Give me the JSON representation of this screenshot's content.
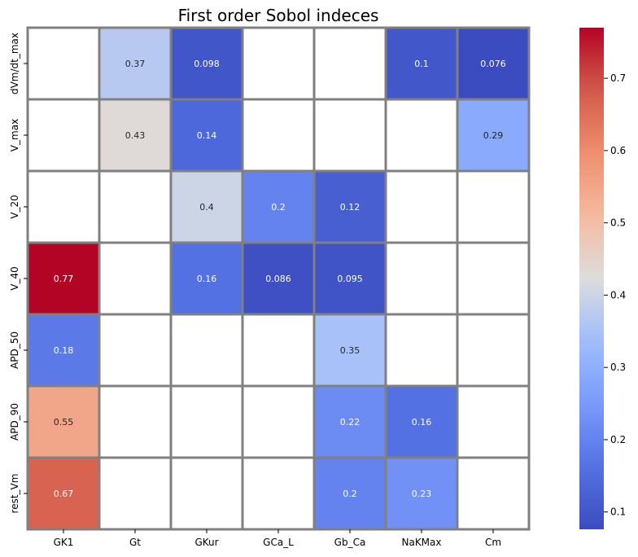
{
  "chart_data": {
    "type": "heatmap",
    "title": "First order Sobol indeces",
    "x_categories": [
      "GK1",
      "Gt",
      "GKur",
      "GCa_L",
      "Gb_Ca",
      "NaKMax",
      "Cm"
    ],
    "y_categories": [
      "dVm/dt_max",
      "V_max",
      "V_20",
      "V_40",
      "APD_50",
      "APD_90",
      "rest_Vm"
    ],
    "values": [
      [
        null,
        0.37,
        0.098,
        null,
        null,
        0.1,
        0.076
      ],
      [
        null,
        0.43,
        0.14,
        null,
        null,
        null,
        0.29
      ],
      [
        null,
        null,
        0.4,
        0.2,
        0.12,
        null,
        null
      ],
      [
        0.77,
        null,
        0.16,
        0.086,
        0.095,
        null,
        null
      ],
      [
        0.18,
        null,
        null,
        null,
        0.35,
        null,
        null
      ],
      [
        0.55,
        null,
        null,
        null,
        0.22,
        0.16,
        null
      ],
      [
        0.67,
        null,
        null,
        null,
        0.2,
        0.23,
        null
      ]
    ],
    "value_labels": [
      [
        null,
        "0.37",
        "0.098",
        null,
        null,
        "0.1",
        "0.076"
      ],
      [
        null,
        "0.43",
        "0.14",
        null,
        null,
        null,
        "0.29"
      ],
      [
        null,
        null,
        "0.4",
        "0.2",
        "0.12",
        null,
        null
      ],
      [
        "0.77",
        null,
        "0.16",
        "0.086",
        "0.095",
        null,
        null
      ],
      [
        "0.18",
        null,
        null,
        null,
        "0.35",
        null,
        null
      ],
      [
        "0.55",
        null,
        null,
        null,
        "0.22",
        "0.16",
        null
      ],
      [
        "0.67",
        null,
        null,
        null,
        "0.2",
        "0.23",
        null
      ]
    ],
    "colormap": "coolwarm",
    "colorbar": {
      "range": [
        0.076,
        0.77
      ],
      "ticks": [
        0.1,
        0.2,
        0.3,
        0.4,
        0.5,
        0.6,
        0.7
      ],
      "tick_labels": [
        "0.1",
        "0.2",
        "0.3",
        "0.4",
        "0.5",
        "0.6",
        "0.7"
      ]
    },
    "grid_color": "#808080",
    "empty_cell_color": "#ffffff",
    "legend": "colorbar-right"
  }
}
